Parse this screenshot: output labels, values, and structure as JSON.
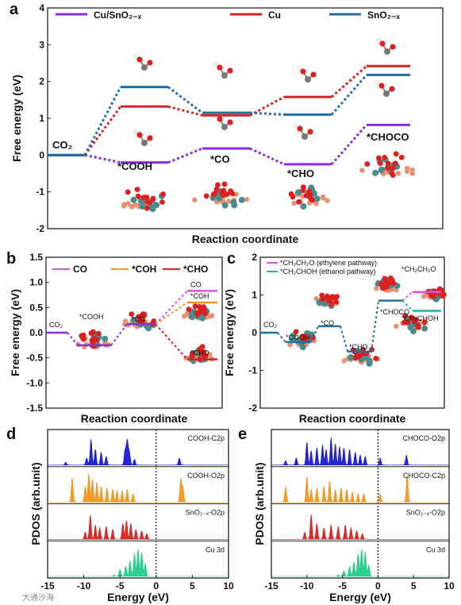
{
  "panels": {
    "a": "a",
    "b": "b",
    "c": "c",
    "d": "d",
    "e": "e"
  },
  "watermark": "大通沙海",
  "chart_data": [
    {
      "id": "a",
      "type": "line",
      "ylabel": "Free energy (eV)",
      "xlabel": "Reaction coordinate",
      "ylim": [
        -2,
        4
      ],
      "yticks": [
        "-2",
        "-1",
        "0",
        "1",
        "2",
        "3",
        "4"
      ],
      "states": [
        "CO2",
        "*COOH",
        "*CO",
        "*CHO",
        "*CHOCO"
      ],
      "state_labels": [
        "CO₂",
        "*COOH",
        "*CO",
        "*CHO",
        "*CHOCO"
      ],
      "series": [
        {
          "name": "Cu/SnO₂₋ₓ",
          "color": "#8a2be2",
          "values": [
            0,
            -0.2,
            0.18,
            -0.25,
            0.82
          ]
        },
        {
          "name": "Cu",
          "color": "#d62222",
          "values": [
            0,
            1.32,
            1.08,
            1.58,
            2.42
          ]
        },
        {
          "name": "SnO₂₋ₓ",
          "color": "#1f6fa5",
          "values": [
            0,
            1.85,
            1.15,
            1.1,
            2.18
          ]
        }
      ],
      "legend_position": "top"
    },
    {
      "id": "b",
      "type": "line",
      "ylabel": "Free energy (eV)",
      "xlabel": "Reaction coordinate",
      "ylim": [
        -1.5,
        1.5
      ],
      "yticks": [
        "-1.5",
        "-1.0",
        "-0.5",
        "0.0",
        "0.5",
        "1.0",
        "1.5"
      ],
      "state_labels": [
        "CO₂",
        "*COOH",
        "*CO"
      ],
      "shared_path": [
        0,
        -0.25,
        0.17
      ],
      "branches": [
        {
          "name": "CO",
          "label": "CO",
          "color": "#e04de0",
          "value": 0.83
        },
        {
          "name": "*COH",
          "label": "*COH",
          "color": "#f0961e",
          "value": 0.6
        },
        {
          "name": "*CHO",
          "label": "*CHO",
          "color": "#d62222",
          "value": -0.53
        }
      ],
      "legend_position": "top-left"
    },
    {
      "id": "c",
      "type": "line",
      "ylabel": "Free energy (eV)",
      "xlabel": "Reaction coordinate",
      "ylim": [
        -2,
        2
      ],
      "yticks": [
        "-2",
        "-1",
        "0",
        "1",
        "2"
      ],
      "state_labels": [
        "CO₂",
        "*COOH",
        "*CO",
        "*CHO",
        "*CHOCO"
      ],
      "shared_path": [
        0,
        -0.25,
        0.17,
        -0.5,
        0.85
      ],
      "branches": [
        {
          "name": "*CH₂CH₂O (ethylene pathway)",
          "label": "*CH₂CH₂O",
          "color": "#e04de0",
          "value": 1.08
        },
        {
          "name": "*CH₂CHOH (ethanol pathway)",
          "label": "*CH₂CHOH",
          "color": "#1fb39a",
          "value": 0.58
        }
      ],
      "legend_position": "top"
    },
    {
      "id": "d",
      "type": "area",
      "ylabel": "PDOS (arb.unit)",
      "xlabel": "Energy (eV)",
      "xlim": [
        -15,
        10
      ],
      "xticks": [
        "-15",
        "-10",
        "-5",
        "0",
        "5",
        "10"
      ],
      "series": [
        {
          "name": "COOH-C2p",
          "color": "#1a1ad1",
          "peaks": [
            [
              -12.5,
              0.1
            ],
            [
              -9.6,
              0.25
            ],
            [
              -9.0,
              0.9
            ],
            [
              -8.4,
              0.55
            ],
            [
              -7.6,
              0.45
            ],
            [
              -6.9,
              0.3
            ],
            [
              -4.3,
              0.5
            ],
            [
              -4.0,
              0.85
            ],
            [
              -3.7,
              0.45
            ],
            [
              -3.0,
              0.2
            ],
            [
              3.2,
              0.25
            ]
          ]
        },
        {
          "name": "COOH-O2p",
          "color": "#f0961e",
          "peaks": [
            [
              -11.6,
              0.85
            ],
            [
              -9.8,
              0.55
            ],
            [
              -9.3,
              1.0
            ],
            [
              -8.8,
              0.8
            ],
            [
              -8.2,
              0.7
            ],
            [
              -7.6,
              0.55
            ],
            [
              -6.8,
              0.5
            ],
            [
              -6.0,
              0.45
            ],
            [
              -5.4,
              0.4
            ],
            [
              -4.7,
              0.4
            ],
            [
              -4.0,
              0.45
            ],
            [
              -3.2,
              0.3
            ],
            [
              3.4,
              0.8
            ],
            [
              3.7,
              0.5
            ]
          ]
        },
        {
          "name": "SnO₂₋ₓ-O2p",
          "color": "#d62222",
          "peaks": [
            [
              -9.8,
              0.25
            ],
            [
              -9.1,
              0.85
            ],
            [
              -8.4,
              0.5
            ],
            [
              -7.8,
              0.4
            ],
            [
              -6.9,
              0.45
            ],
            [
              -6.0,
              0.35
            ],
            [
              -4.6,
              0.55
            ],
            [
              -4.1,
              0.65
            ],
            [
              -3.5,
              0.55
            ],
            [
              -2.8,
              0.35
            ],
            [
              -2.0,
              0.3
            ],
            [
              -1.3,
              0.2
            ]
          ]
        },
        {
          "name": "Cu 3d",
          "color": "#22cc88",
          "peaks": [
            [
              -5.8,
              0.05
            ],
            [
              -5.0,
              0.25
            ],
            [
              -4.2,
              0.35
            ],
            [
              -3.6,
              0.55
            ],
            [
              -3.0,
              0.8
            ],
            [
              -2.5,
              0.95
            ],
            [
              -2.0,
              0.85
            ],
            [
              -1.5,
              0.45
            ]
          ]
        }
      ],
      "fermi_line": 0
    },
    {
      "id": "e",
      "type": "area",
      "ylabel": "PDOS (arb.unit)",
      "xlabel": "Energy (eV)",
      "xlim": [
        -15,
        10
      ],
      "xticks": [
        "-15",
        "-10",
        "-5",
        "0",
        "5",
        "10"
      ],
      "series": [
        {
          "name": "CHOCO-O2p",
          "color": "#1a1ad1",
          "peaks": [
            [
              -13.0,
              0.15
            ],
            [
              -11.5,
              0.25
            ],
            [
              -10.0,
              0.8
            ],
            [
              -9.4,
              0.5
            ],
            [
              -8.6,
              0.6
            ],
            [
              -7.8,
              0.7
            ],
            [
              -7.3,
              0.55
            ],
            [
              -6.6,
              0.95
            ],
            [
              -6.0,
              0.75
            ],
            [
              -5.4,
              0.65
            ],
            [
              -4.8,
              0.6
            ],
            [
              -4.0,
              0.55
            ],
            [
              -3.2,
              0.45
            ],
            [
              -2.5,
              0.35
            ],
            [
              -1.8,
              0.3
            ],
            [
              0.3,
              0.25
            ],
            [
              4.0,
              0.35
            ]
          ]
        },
        {
          "name": "CHOCO-C2p",
          "color": "#f0961e",
          "peaks": [
            [
              -13.0,
              0.55
            ],
            [
              -10.0,
              0.9
            ],
            [
              -9.4,
              0.45
            ],
            [
              -8.6,
              0.5
            ],
            [
              -7.6,
              0.55
            ],
            [
              -6.8,
              0.75
            ],
            [
              -6.0,
              0.45
            ],
            [
              -5.2,
              0.5
            ],
            [
              -4.4,
              0.45
            ],
            [
              -3.6,
              0.35
            ],
            [
              -2.8,
              0.3
            ],
            [
              -2.0,
              0.3
            ],
            [
              0.3,
              0.3
            ],
            [
              4.1,
              0.95
            ]
          ]
        },
        {
          "name": "SnO₂₋ₓ-O2p",
          "color": "#d62222",
          "peaks": [
            [
              -10.3,
              0.25
            ],
            [
              -9.4,
              0.85
            ],
            [
              -8.6,
              0.55
            ],
            [
              -7.6,
              0.4
            ],
            [
              -6.6,
              0.5
            ],
            [
              -5.6,
              0.45
            ],
            [
              -4.6,
              0.5
            ],
            [
              -3.8,
              0.4
            ],
            [
              -3.0,
              0.3
            ],
            [
              -2.2,
              0.2
            ]
          ]
        },
        {
          "name": "Cu 3d",
          "color": "#22cc88",
          "peaks": [
            [
              -5.6,
              0.05
            ],
            [
              -4.8,
              0.2
            ],
            [
              -4.0,
              0.35
            ],
            [
              -3.4,
              0.5
            ],
            [
              -2.8,
              0.8
            ],
            [
              -2.3,
              0.95
            ],
            [
              -1.8,
              0.85
            ],
            [
              -1.3,
              0.4
            ]
          ]
        }
      ],
      "fermi_line": 0
    }
  ]
}
